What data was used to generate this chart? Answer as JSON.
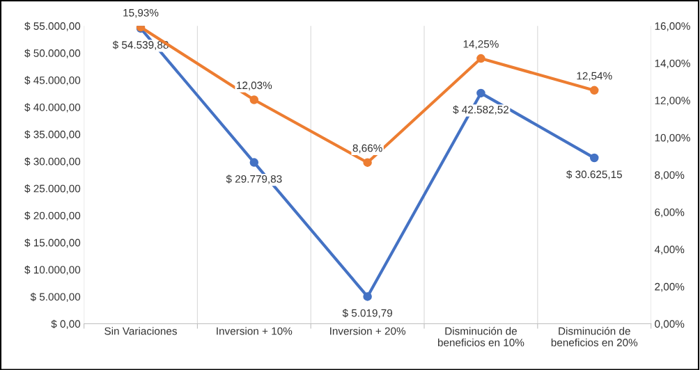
{
  "chart_data": {
    "type": "line",
    "categories": [
      "Sin Variaciones",
      "Inversion + 10%",
      "Inversion + 20%",
      "Disminución de\nbeneficios en 10%",
      "Disminución de\nbeneficios en 20%"
    ],
    "series": [
      {
        "color": "#4472c4",
        "values": [
          54539.88,
          29779.83,
          5019.79,
          42582.52,
          30625.15
        ],
        "value_labels": [
          "$ 54.539,88",
          "$ 29.779,83",
          "$ 5.019,79",
          "$ 42.582,52",
          "$ 30.625,15"
        ]
      },
      {
        "color": "#ed7d31",
        "axis": "y2",
        "values": [
          15.93,
          12.03,
          8.66,
          14.25,
          12.54
        ],
        "value_labels": [
          "15,93%",
          "12,03%",
          "8,66%",
          "14,25%",
          "12,54%"
        ]
      }
    ],
    "ylim": [
      0,
      55000
    ],
    "yticks": [
      {
        "value": 0,
        "label": "$ 0,00"
      },
      {
        "value": 5000,
        "label": "$ 5.000,00"
      },
      {
        "value": 10000,
        "label": "$ 10.000,00"
      },
      {
        "value": 15000,
        "label": "$ 15.000,00"
      },
      {
        "value": 20000,
        "label": "$ 20.000,00"
      },
      {
        "value": 25000,
        "label": "$ 25.000,00"
      },
      {
        "value": 30000,
        "label": "$ 30.000,00"
      },
      {
        "value": 35000,
        "label": "$ 35.000,00"
      },
      {
        "value": 40000,
        "label": "$ 40.000,00"
      },
      {
        "value": 45000,
        "label": "$ 45.000,00"
      },
      {
        "value": 50000,
        "label": "$ 50.000,00"
      },
      {
        "value": 55000,
        "label": "$ 55.000,00"
      }
    ],
    "y2lim": [
      0,
      16
    ],
    "y2ticks": [
      {
        "value": 0,
        "label": "0,00%"
      },
      {
        "value": 2,
        "label": "2,00%"
      },
      {
        "value": 4,
        "label": "4,00%"
      },
      {
        "value": 6,
        "label": "6,00%"
      },
      {
        "value": 8,
        "label": "8,00%"
      },
      {
        "value": 10,
        "label": "10,00%"
      },
      {
        "value": 12,
        "label": "12,00%"
      },
      {
        "value": 14,
        "label": "14,00%"
      },
      {
        "value": 16,
        "label": "16,00%"
      }
    ],
    "grid": "x",
    "legend": false,
    "marker": "circle",
    "line_style": "solid"
  }
}
